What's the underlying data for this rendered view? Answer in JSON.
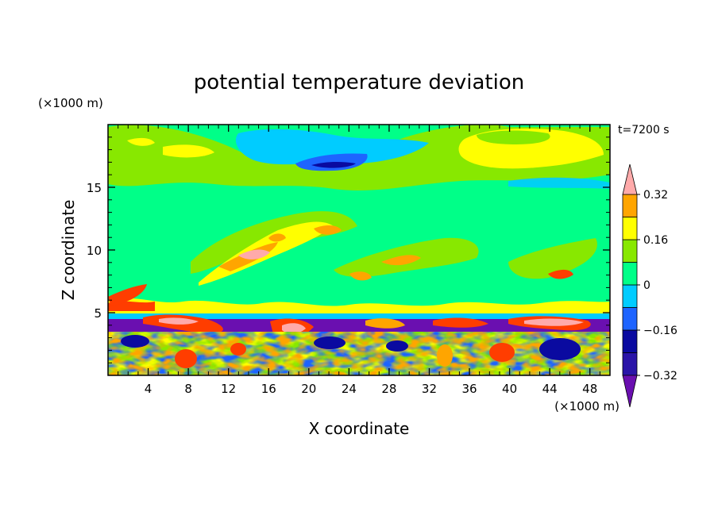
{
  "chart_data": {
    "type": "heatmap",
    "title": "potential temperature deviation",
    "xlabel": "X coordinate",
    "ylabel": "Z coordinate",
    "x_unit": "(×1000 m)",
    "y_unit": "(×1000 m)",
    "time_label": "t=7200 s",
    "xlim": [
      0,
      50
    ],
    "ylim": [
      0,
      20
    ],
    "x_ticks": [
      4,
      8,
      12,
      16,
      20,
      24,
      28,
      32,
      36,
      40,
      44,
      48
    ],
    "y_ticks": [
      5,
      10,
      15
    ],
    "colorbar": {
      "levels": [
        -0.4,
        -0.32,
        -0.24,
        -0.16,
        -0.08,
        0,
        0.08,
        0.16,
        0.24,
        0.32,
        0.4
      ],
      "tick_labels": [
        "0.32",
        "0.16",
        "0",
        "−0.16",
        "−0.32"
      ],
      "tick_values": [
        0.32,
        0.16,
        0,
        -0.16,
        -0.32
      ],
      "colors": [
        "#6a0fb0",
        "#2a14a8",
        "#0a0aa0",
        "#1e64ff",
        "#00ccff",
        "#00ff88",
        "#88e800",
        "#ffff00",
        "#ffa500",
        "#ff3d00",
        "#ffaaaa"
      ],
      "extend": "both"
    },
    "fields": {
      "background": 0,
      "features": [
        {
          "x": [
            0,
            50
          ],
          "z": [
            4.2,
            4.7
          ],
          "value": -0.36,
          "shape": "band"
        },
        {
          "x": [
            0,
            50
          ],
          "z": [
            4.8,
            5.3
          ],
          "value": -0.1,
          "shape": "band"
        },
        {
          "x": [
            0,
            50
          ],
          "z": [
            0,
            4
          ],
          "value": 0.0,
          "shape": "turbulent-layer"
        },
        {
          "x": [
            18,
            30
          ],
          "z": [
            16.5,
            18.5
          ],
          "value": -0.16,
          "shape": "blob"
        },
        {
          "x": [
            19,
            25
          ],
          "z": [
            16.7,
            17.7
          ],
          "value": -0.32,
          "shape": "blob"
        },
        {
          "x": [
            36,
            50
          ],
          "z": [
            15.5,
            19.5
          ],
          "value": 0.12,
          "shape": "blob"
        },
        {
          "x": [
            5,
            35
          ],
          "z": [
            5,
            13
          ],
          "value": 0.3,
          "shape": "streaks"
        }
      ]
    }
  }
}
